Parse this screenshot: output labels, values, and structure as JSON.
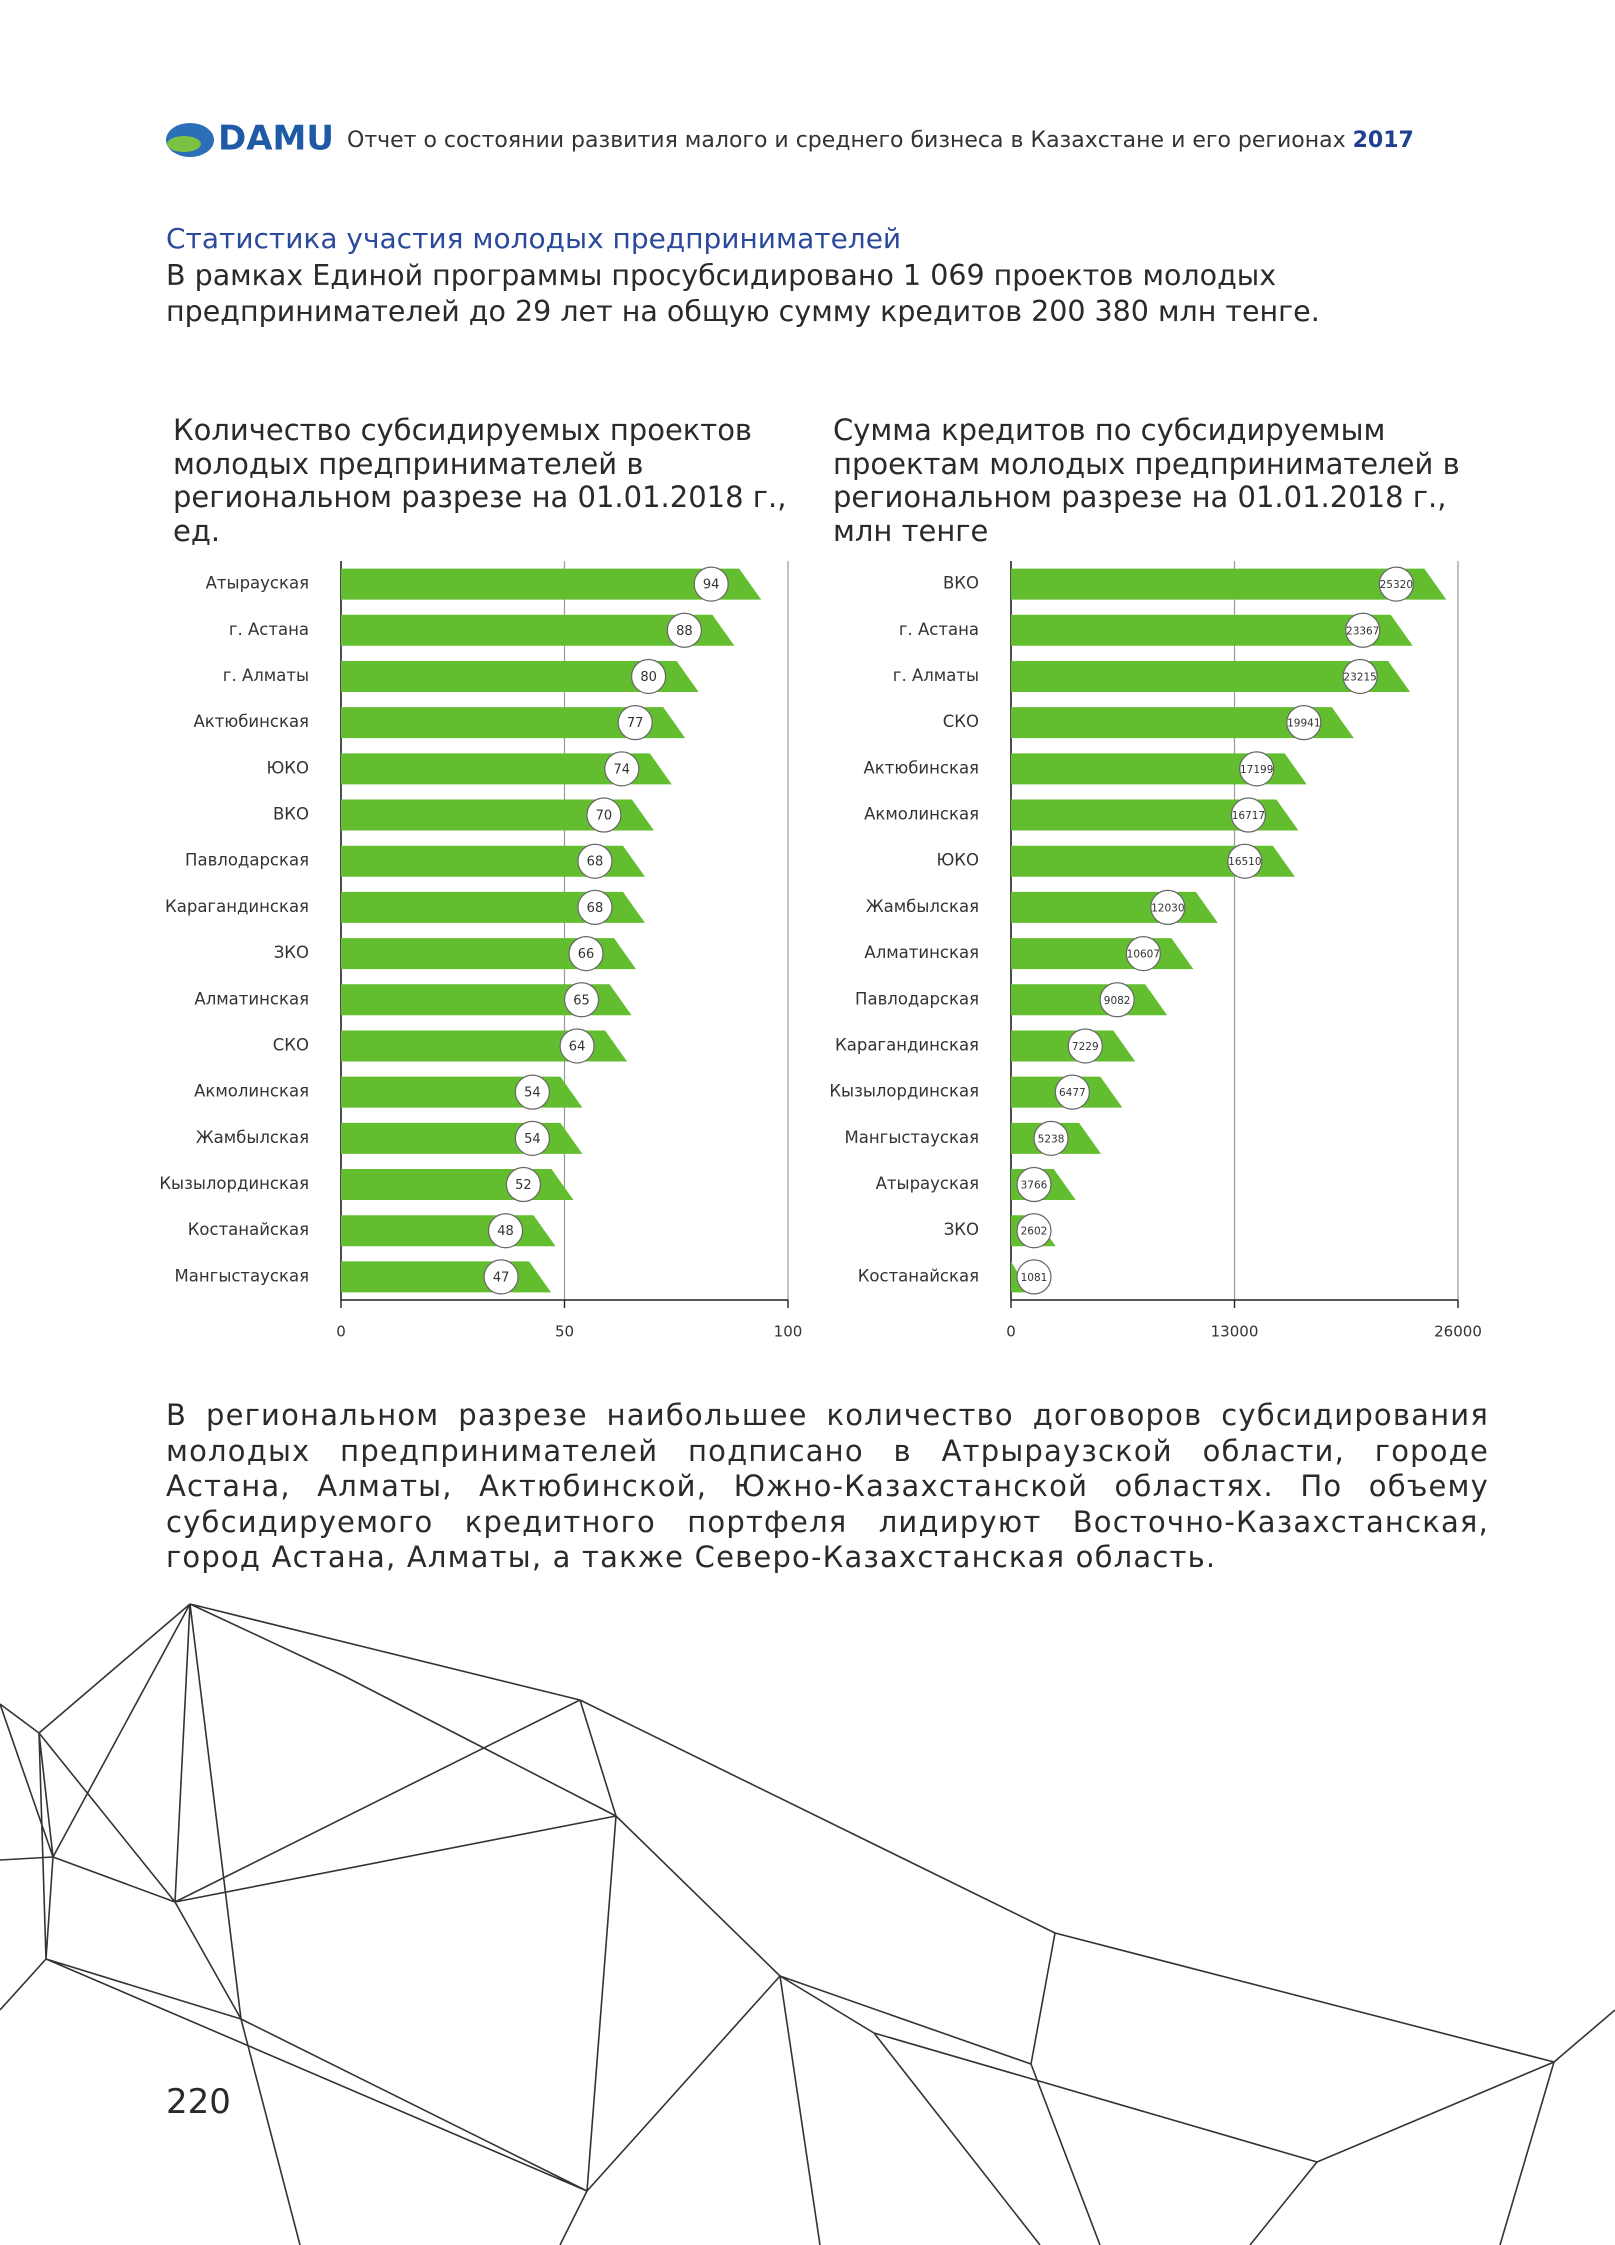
{
  "header": {
    "logo": "DAMU",
    "title": "Отчет о состоянии развития малого и среднего бизнеса в Казахстане и его регионах",
    "year": "2017"
  },
  "section_title": "Статистика участия молодых предпринимателей",
  "intro": "В рамках Единой программы просубсидировано 1 069 проектов молодых предпринимателей до 29 лет на общую сумму кредитов 200 380 млн тенге.",
  "chart_data": [
    {
      "type": "bar",
      "title": "Количество субсидируемых проектов молодых предпринимателей в региональном разрезе на 01.01.2018 г., ед.",
      "categories": [
        "Атырауская",
        "г. Астана",
        "г. Алматы",
        "Актюбинская",
        "ЮКО",
        "ВКО",
        "Павлодарская",
        "Карагандинская",
        "ЗКО",
        "Алматинская",
        "СКО",
        "Акмолинская",
        "Жамбылская",
        "Кызылординская",
        "Костанайская",
        "Мангыстауская"
      ],
      "values": [
        94,
        88,
        80,
        77,
        74,
        70,
        68,
        68,
        66,
        65,
        64,
        54,
        54,
        52,
        48,
        47
      ],
      "color": "#62bd2f",
      "xlim": [
        0,
        100
      ],
      "xticks": [
        0,
        50,
        100
      ],
      "grid": true
    },
    {
      "type": "bar",
      "title": "Сумма кредитов по субсидируемым проектам молодых предпринимателей в региональном разрезе на 01.01.2018 г., млн тенге",
      "categories": [
        "ВКО",
        "г. Астана",
        "г. Алматы",
        "СКО",
        "Актюбинская",
        "Акмолинская",
        "ЮКО",
        "Жамбылская",
        "Алматинская",
        "Павлодарская",
        "Карагандинская",
        "Кызылординская",
        "Мангыстауская",
        "Атырауская",
        "ЗКО",
        "Костанайская"
      ],
      "values": [
        25320,
        23367,
        23215,
        19941,
        17199,
        16717,
        16510,
        12030,
        10607,
        9082,
        7229,
        6477,
        5238,
        3766,
        2602,
        1081
      ],
      "color": "#62bd2f",
      "xlim": [
        0,
        26000
      ],
      "xticks": [
        0,
        13000,
        26000
      ],
      "grid": true
    }
  ],
  "body": "В региональном разрезе наибольшее количество договоров субсидирования молодых предпринимателей подписано в Атрыраузской области, городе Астана, Алматы, Актюбинской, Южно-Казахстанской областях. По объему субсидируемого кредитного портфеля лидируют Восточно-Казахстанская, город Астана, Алматы, а также Северо-Казахстанская область.",
  "page_number": "220"
}
